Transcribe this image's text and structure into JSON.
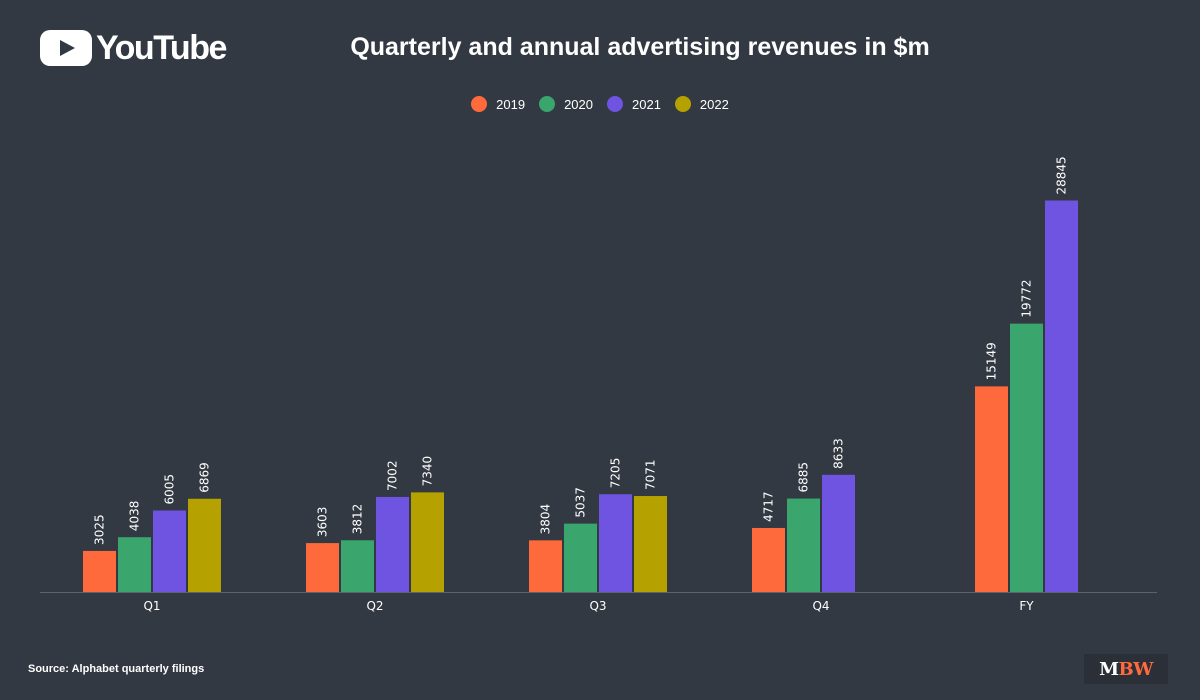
{
  "header": {
    "logo_text": "YouTube",
    "logo_icon": "youtube-play-icon"
  },
  "footer": {
    "source": "Source: Alphabet quarterly filings",
    "brand_m": "M",
    "brand_bw": "BW"
  },
  "chart_data": {
    "type": "bar",
    "title": "Quarterly and annual advertising revenues in $m",
    "xlabel": "",
    "ylabel": "",
    "categories": [
      "Q1",
      "Q2",
      "Q3",
      "Q4",
      "FY"
    ],
    "series": [
      {
        "name": "2019",
        "color": "#ff6a3d",
        "values": [
          3025,
          3603,
          3804,
          4717,
          15149
        ]
      },
      {
        "name": "2020",
        "color": "#3ba56e",
        "values": [
          4038,
          3812,
          5037,
          6885,
          19772
        ]
      },
      {
        "name": "2021",
        "color": "#6e54e0",
        "values": [
          6005,
          7002,
          7205,
          8633,
          28845
        ]
      },
      {
        "name": "2022",
        "color": "#b5a100",
        "values": [
          6869,
          7340,
          7071,
          null,
          null
        ]
      }
    ],
    "ylim": [
      0,
      32000
    ],
    "grid": false,
    "legend": "top-center",
    "data_labels": true
  }
}
